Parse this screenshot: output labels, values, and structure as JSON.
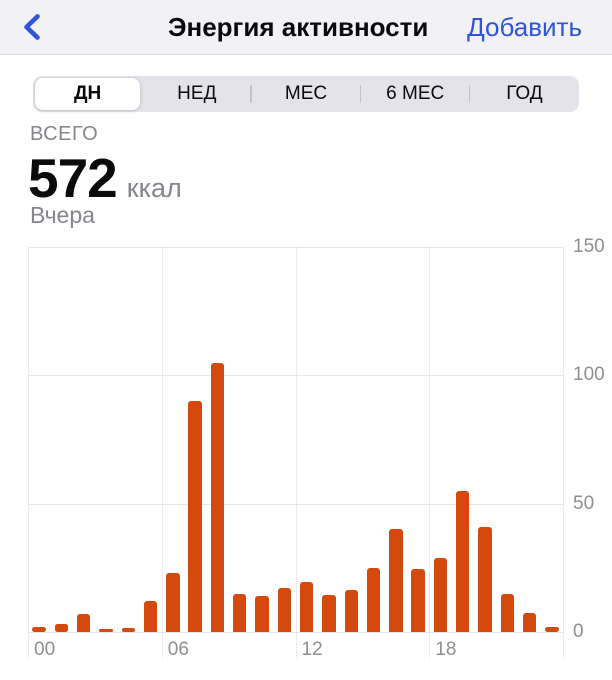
{
  "nav": {
    "back_icon": "chevron-left",
    "title": "Энергия активности",
    "add_label": "Добавить"
  },
  "segmented_control": {
    "options": [
      "ДН",
      "НЕД",
      "МЕС",
      "6 МЕС",
      "ГОД"
    ],
    "selected_index": 0,
    "selected_label": "ДН"
  },
  "summary": {
    "label": "ВСЕГО",
    "value": "572",
    "unit": "ккал",
    "period": "Вчера"
  },
  "chart_data": {
    "type": "bar",
    "title": "",
    "xlabel": "hour of day",
    "ylabel": "ккал",
    "x": [
      0,
      1,
      2,
      3,
      4,
      5,
      6,
      7,
      8,
      9,
      10,
      11,
      12,
      13,
      14,
      15,
      16,
      17,
      18,
      19,
      20,
      21,
      22,
      23
    ],
    "values": [
      2,
      3,
      7,
      1,
      1.5,
      12,
      23,
      90,
      105,
      15,
      14,
      17,
      19.5,
      14.5,
      16.5,
      25,
      40,
      24.5,
      29,
      55,
      41,
      15,
      7.5,
      2
    ],
    "ylim": [
      0,
      150
    ],
    "yticks": [
      0,
      50,
      100,
      150
    ],
    "xticks": [
      {
        "hour": 0,
        "label": "00"
      },
      {
        "hour": 6,
        "label": "06"
      },
      {
        "hour": 12,
        "label": "12"
      },
      {
        "hour": 18,
        "label": "18"
      }
    ],
    "grid": true,
    "gridline_hours": [
      6,
      12,
      18
    ],
    "legend": "none",
    "bar_color": "#D3490E"
  },
  "colors": {
    "accent_blue": "#2D55D6",
    "bar_orange": "#D3490E",
    "nav_bg": "#F2F1F6",
    "nav_border": "#D9D8DD",
    "seg_bg": "#E4E3E9",
    "seg_selected_bg": "#FFFFFF",
    "text_primary": "#0B0B0C",
    "text_secondary": "#86858B",
    "grid_line": "#E7E7E7",
    "axis_label": "#8E8E93",
    "separator": "#C3C2C8"
  }
}
